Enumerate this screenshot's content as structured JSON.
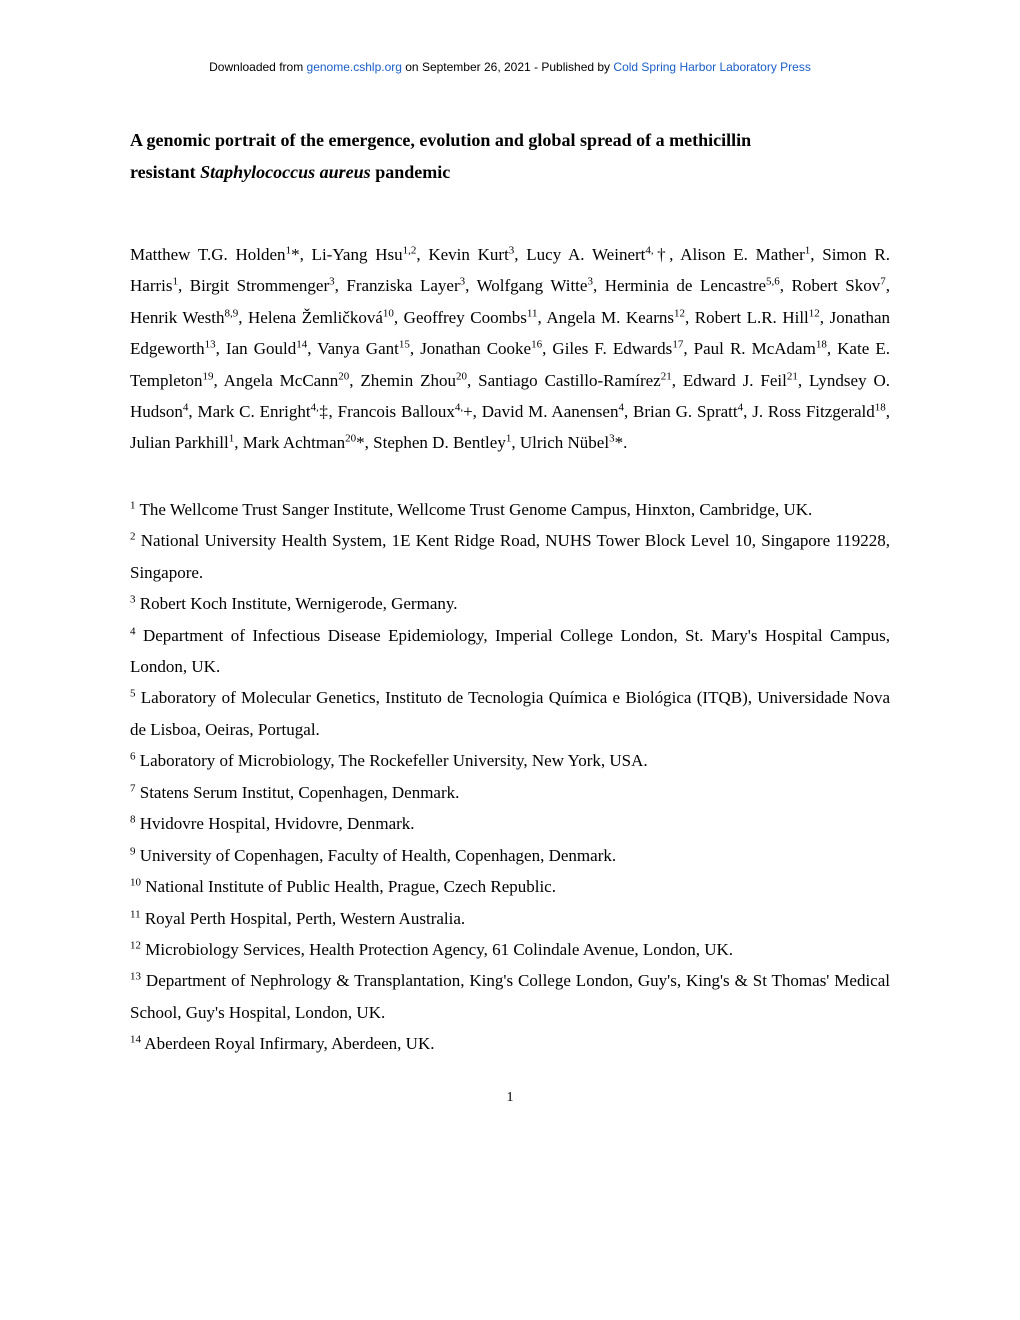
{
  "header": {
    "prefix": "Downloaded from ",
    "link1": "genome.cshlp.org",
    "middle": " on September 26, 2021 - Published by ",
    "link2": "Cold Spring Harbor Laboratory Press"
  },
  "title": {
    "line1": "A genomic portrait of the emergence, evolution and global spread of a methicillin",
    "line2_prefix": "resistant ",
    "line2_italic": "Staphylococcus aureus",
    "line2_suffix": " pandemic"
  },
  "authors_html": "Matthew T.G. Holden<sup>1</sup>*, Li-Yang Hsu<sup>1,2</sup>, Kevin Kurt<sup>3</sup>, Lucy A. Weinert<sup>4,</sup>†, Alison E. Mather<sup>1</sup>, Simon R. Harris<sup>1</sup>, Birgit Strommenger<sup>3</sup>, Franziska Layer<sup>3</sup>, Wolfgang Witte<sup>3</sup>, Herminia de Lencastre<sup>5,6</sup>, Robert Skov<sup>7</sup>, Henrik Westh<sup>8,9</sup>, Helena Žemličková<sup>10</sup>, Geoffrey Coombs<sup>11</sup>, Angela M. Kearns<sup>12</sup>, Robert L.R. Hill<sup>12</sup>, Jonathan Edgeworth<sup>13</sup>, Ian Gould<sup>14</sup>, Vanya Gant<sup>15</sup>, Jonathan Cooke<sup>16</sup>, Giles F. Edwards<sup>17</sup>, Paul R. McAdam<sup>18</sup>, Kate E. Templeton<sup>19</sup>, Angela McCann<sup>20</sup>, Zhemin Zhou<sup>20</sup>, Santiago Castillo-Ramírez<sup>21</sup>, Edward J. Feil<sup>21</sup>, Lyndsey O. Hudson<sup>4</sup>, Mark C. Enright<sup>4,</sup>‡, Francois Balloux<sup>4,</sup>+, David M. Aanensen<sup>4</sup>, Brian G. Spratt<sup>4</sup>, J. Ross Fitzgerald<sup>18</sup>, Julian Parkhill<sup>1</sup>, Mark Achtman<sup>20</sup>*, Stephen D. Bentley<sup>1</sup>, Ulrich Nübel<sup>3</sup>*.",
  "affiliations": [
    {
      "sup": "1",
      "text": " The Wellcome Trust Sanger Institute, Wellcome Trust Genome Campus, Hinxton, Cambridge, UK."
    },
    {
      "sup": "2",
      "text": " National University Health System, 1E Kent Ridge Road, NUHS Tower Block Level 10, Singapore 119228, Singapore."
    },
    {
      "sup": "3",
      "text": " Robert Koch Institute, Wernigerode, Germany."
    },
    {
      "sup": "4",
      "text": " Department of Infectious Disease Epidemiology, Imperial College London, St. Mary's Hospital Campus, London, UK."
    },
    {
      "sup": "5",
      "text": " Laboratory of Molecular Genetics, Instituto de Tecnologia Química e Biológica (ITQB), Universidade Nova de Lisboa, Oeiras, Portugal."
    },
    {
      "sup": "6",
      "text": " Laboratory of Microbiology, The Rockefeller University, New York, USA."
    },
    {
      "sup": "7",
      "text": " Statens Serum Institut, Copenhagen, Denmark."
    },
    {
      "sup": "8",
      "text": " Hvidovre Hospital, Hvidovre, Denmark."
    },
    {
      "sup": "9",
      "text": " University of Copenhagen, Faculty of Health, Copenhagen, Denmark."
    },
    {
      "sup": "10",
      "text": " National Institute of Public Health, Prague, Czech Republic."
    },
    {
      "sup": "11",
      "text": " Royal Perth Hospital, Perth, Western Australia."
    },
    {
      "sup": "12",
      "text": " Microbiology Services, Health Protection Agency, 61 Colindale Avenue, London, UK."
    },
    {
      "sup": "13",
      "text": " Department of Nephrology & Transplantation, King's College London, Guy's, King's & St Thomas' Medical School, Guy's Hospital, London, UK."
    },
    {
      "sup": "14",
      "text": " Aberdeen Royal Infirmary, Aberdeen, UK."
    }
  ],
  "page_number": "1"
}
